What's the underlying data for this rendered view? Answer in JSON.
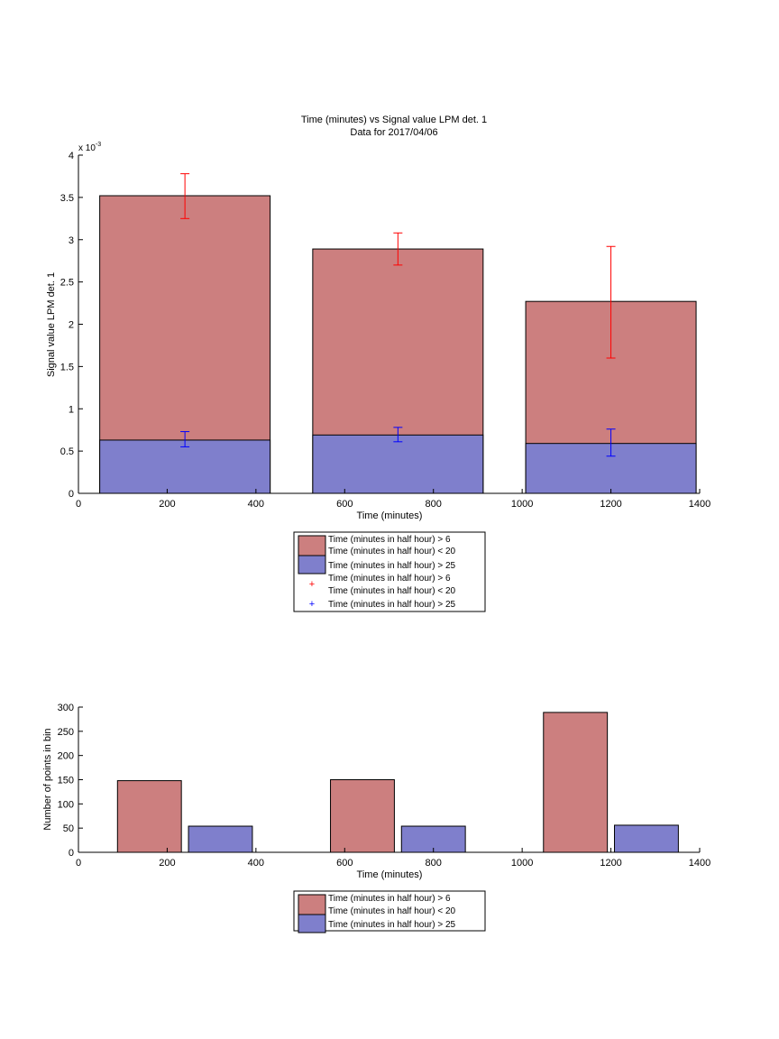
{
  "chart_data": [
    {
      "type": "bar",
      "title": "Time (minutes) vs Signal value LPM det. 1",
      "subtitle": "Data for 2017/04/06",
      "xlabel": "Time (minutes)",
      "ylabel": "Signal value LPM det. 1",
      "exponent_label": "x 10",
      "exponent_power": "-3",
      "xlim": [
        0,
        1400
      ],
      "ylim": [
        0,
        0.004
      ],
      "xticks": [
        0,
        200,
        400,
        600,
        800,
        1000,
        1200,
        1400
      ],
      "yticks": [
        0,
        0.0005,
        0.001,
        0.0015,
        0.002,
        0.0025,
        0.003,
        0.0035,
        0.004
      ],
      "ytick_labels": [
        "0",
        "0.5",
        "1",
        "1.5",
        "2",
        "2.5",
        "3",
        "3.5",
        "4"
      ],
      "grid": false,
      "legend_position": "below",
      "bars": {
        "x": [
          240,
          720,
          1200
        ],
        "series": [
          {
            "values": [
              0.00352,
              0.00289,
              0.00227
            ],
            "color": "#cc7f7f",
            "legend": "Time (minutes in half hour) > 6\nTime (minutes in half hour) < 20"
          },
          {
            "values": [
              0.00063,
              0.00069,
              0.00059
            ],
            "color": "#7f7fcc",
            "legend": "Time (minutes in half hour) > 25"
          }
        ]
      },
      "errorbars": [
        {
          "x": [
            240,
            720,
            1200
          ],
          "lower": [
            0.00325,
            0.0027,
            0.0016
          ],
          "upper": [
            0.00378,
            0.00308,
            0.00292
          ],
          "color": "#ff0000",
          "legend": "Time (minutes in half hour) > 6\nTime (minutes in half hour) < 20"
        },
        {
          "x": [
            240,
            720,
            1200
          ],
          "lower": [
            0.00055,
            0.00061,
            0.00044
          ],
          "upper": [
            0.00073,
            0.00078,
            0.00076
          ],
          "color": "#0000ff",
          "legend": "Time (minutes in half hour) > 25"
        }
      ]
    },
    {
      "type": "bar",
      "xlabel": "Time (minutes)",
      "ylabel": "Number of points in bin",
      "xlim": [
        0,
        1400
      ],
      "ylim": [
        0,
        300
      ],
      "xticks": [
        0,
        200,
        400,
        600,
        800,
        1000,
        1200,
        1400
      ],
      "yticks": [
        0,
        50,
        100,
        150,
        200,
        250,
        300
      ],
      "grid": false,
      "legend_position": "below",
      "series": [
        {
          "x": [
            160,
            640,
            1120
          ],
          "values": [
            148,
            150,
            289
          ],
          "color": "#cc7f7f",
          "legend": "Time (minutes in half hour) > 6\nTime (minutes in half hour) < 20"
        },
        {
          "x": [
            320,
            800,
            1280
          ],
          "values": [
            54,
            54,
            56
          ],
          "color": "#7f7fcc",
          "legend": "Time (minutes in half hour) > 25"
        }
      ]
    }
  ]
}
